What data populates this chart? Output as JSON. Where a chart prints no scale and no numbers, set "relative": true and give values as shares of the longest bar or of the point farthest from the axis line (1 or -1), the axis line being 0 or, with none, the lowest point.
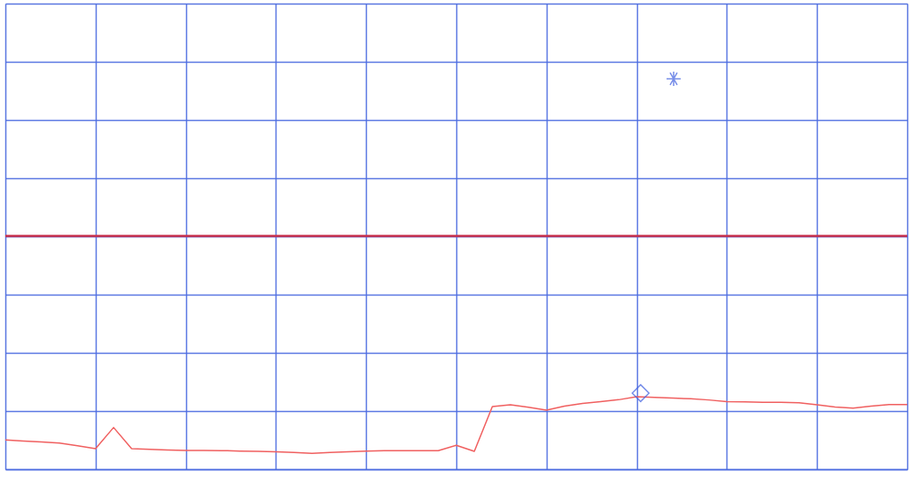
{
  "chart_data": {
    "type": "line",
    "relative": true,
    "grid": true,
    "categories": [
      null,
      null,
      null,
      null,
      null,
      null,
      null,
      null,
      null,
      null,
      null,
      null,
      null,
      null,
      null,
      null,
      null,
      null,
      null,
      null,
      null,
      null,
      null,
      null,
      null,
      null,
      null,
      null,
      null,
      null,
      null,
      null,
      null,
      null,
      null,
      null,
      null,
      null,
      null,
      null,
      null,
      null,
      null,
      null,
      null,
      null,
      null,
      null,
      null,
      null,
      null
    ],
    "series": [
      {
        "color": "#f06060",
        "values": [
          0.126,
          0.121,
          0.117,
          0.112,
          0.101,
          0.088,
          0.179,
          0.088,
          0.085,
          0.083,
          0.081,
          0.081,
          0.08,
          0.078,
          0.077,
          0.075,
          0.072,
          0.068,
          0.072,
          0.075,
          0.078,
          0.08,
          0.08,
          0.08,
          0.08,
          0.103,
          0.077,
          0.269,
          0.276,
          0.266,
          0.253,
          0.271,
          0.282,
          0.29,
          0.298,
          0.311,
          0.308,
          0.305,
          0.302,
          0.297,
          0.29,
          0.289,
          0.287,
          0.287,
          0.285,
          0.276,
          0.267,
          0.262,
          0.271,
          0.277,
          0.277
        ]
      },
      {
        "color": "#c8304c",
        "values": [
          1,
          1,
          1,
          1,
          1,
          1,
          1,
          1,
          1,
          1,
          1,
          1,
          1,
          1,
          1,
          1,
          1,
          1,
          1,
          1,
          1,
          1,
          1,
          1,
          1,
          1,
          1,
          1,
          1,
          1,
          1,
          1,
          1,
          1,
          1,
          1,
          1,
          1,
          1,
          1,
          1,
          1,
          1,
          1,
          1,
          1,
          1,
          1,
          1,
          1,
          1
        ]
      }
    ]
  }
}
